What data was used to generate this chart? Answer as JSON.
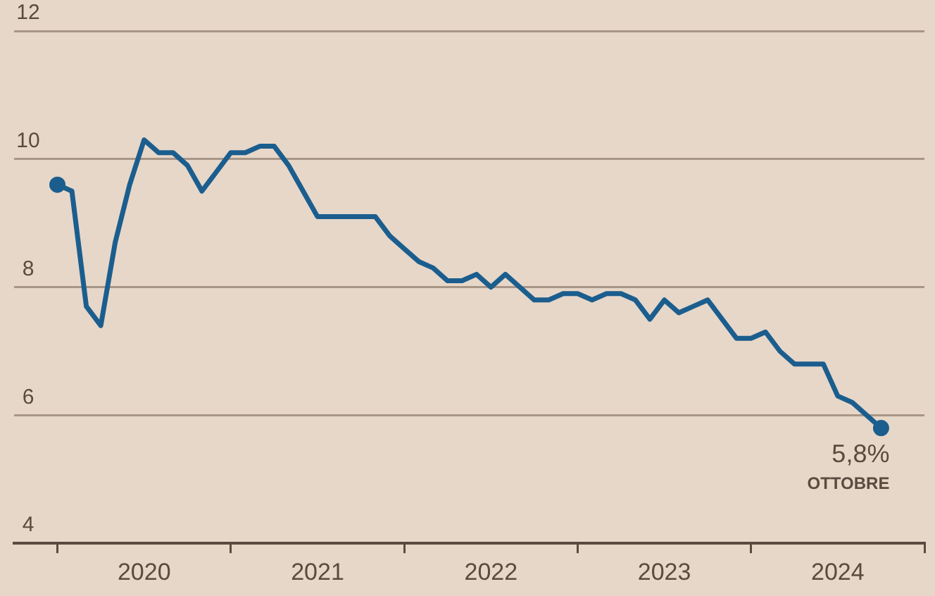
{
  "chart_data": {
    "type": "line",
    "x": [
      "2020-01",
      "2020-02",
      "2020-03",
      "2020-04",
      "2020-05",
      "2020-06",
      "2020-07",
      "2020-08",
      "2020-09",
      "2020-10",
      "2020-11",
      "2020-12",
      "2021-01",
      "2021-02",
      "2021-03",
      "2021-04",
      "2021-05",
      "2021-06",
      "2021-07",
      "2021-08",
      "2021-09",
      "2021-10",
      "2021-11",
      "2021-12",
      "2022-01",
      "2022-02",
      "2022-03",
      "2022-04",
      "2022-05",
      "2022-06",
      "2022-07",
      "2022-08",
      "2022-09",
      "2022-10",
      "2022-11",
      "2022-12",
      "2023-01",
      "2023-02",
      "2023-03",
      "2023-04",
      "2023-05",
      "2023-06",
      "2023-07",
      "2023-08",
      "2023-09",
      "2023-10",
      "2023-11",
      "2023-12",
      "2024-01",
      "2024-02",
      "2024-03",
      "2024-04",
      "2024-05",
      "2024-06",
      "2024-07",
      "2024-08",
      "2024-09",
      "2024-10"
    ],
    "series": [
      {
        "color": "#1b5e8e",
        "values": [
          9.6,
          9.5,
          7.7,
          7.4,
          8.7,
          9.6,
          10.3,
          10.1,
          10.1,
          9.9,
          9.5,
          9.8,
          10.1,
          10.1,
          10.2,
          10.2,
          9.9,
          9.5,
          9.1,
          9.1,
          9.1,
          9.1,
          9.1,
          8.8,
          8.6,
          8.4,
          8.3,
          8.1,
          8.1,
          8.2,
          8.0,
          8.2,
          8.0,
          7.8,
          7.8,
          7.9,
          7.9,
          7.8,
          7.9,
          7.9,
          7.8,
          7.5,
          7.8,
          7.6,
          7.7,
          7.8,
          7.5,
          7.2,
          7.2,
          7.3,
          7.0,
          6.8,
          6.8,
          6.8,
          6.3,
          6.2,
          6.0,
          5.8
        ]
      }
    ],
    "xlim": [
      "2019-10",
      "2025-01"
    ],
    "xticks": [
      {
        "value": "2020-01",
        "label": null
      },
      {
        "value": "2020-07",
        "label": "2020"
      },
      {
        "value": "2021-01",
        "label": null
      },
      {
        "value": "2021-07",
        "label": "2021"
      },
      {
        "value": "2022-01",
        "label": null
      },
      {
        "value": "2022-07",
        "label": "2022"
      },
      {
        "value": "2023-01",
        "label": null
      },
      {
        "value": "2023-07",
        "label": "2023"
      },
      {
        "value": "2024-01",
        "label": null
      },
      {
        "value": "2024-07",
        "label": "2024"
      },
      {
        "value": "2025-01",
        "label": null
      }
    ],
    "ylim": [
      4,
      12
    ],
    "yticks": [
      4,
      6,
      8,
      10,
      12
    ],
    "grid": "y",
    "annotations": [
      {
        "text": "5,8%",
        "x": "2024-10",
        "y": 5.8
      },
      {
        "text": "OTTOBRE",
        "x": "2024-10",
        "y": 5.8
      }
    ]
  }
}
